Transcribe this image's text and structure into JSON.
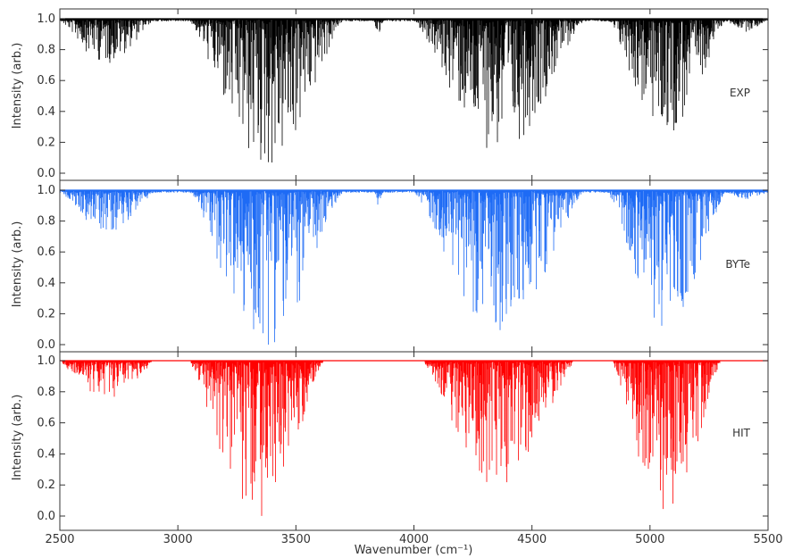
{
  "chart_data": {
    "type": "line",
    "x_range": [
      2500,
      5500
    ],
    "ylim": [
      0.0,
      1.0
    ],
    "xlabel": "Wavenumber (cm⁻¹)",
    "ylabel": "Intensity (arb.)",
    "x_ticks": [
      "2500",
      "3000",
      "3500",
      "4000",
      "4500",
      "5000",
      "5500"
    ],
    "x_tick_values": [
      2500,
      3000,
      3500,
      4000,
      4500,
      5000,
      5500
    ],
    "y_ticks": [
      "0.0",
      "0.2",
      "0.4",
      "0.6",
      "0.8",
      "1.0"
    ],
    "y_tick_values": [
      0.0,
      0.2,
      0.4,
      0.6,
      0.8,
      1.0
    ],
    "panels": [
      {
        "label": "EXP",
        "color": "#000000",
        "bands": [
          {
            "range": [
              2500,
              2900
            ],
            "min": 0.72
          },
          {
            "range": [
              3050,
              3700
            ],
            "min": 0.01
          },
          {
            "range": [
              3830,
              3870
            ],
            "min": 0.88
          },
          {
            "range": [
              4000,
              4720
            ],
            "min": 0.14
          },
          {
            "range": [
              4820,
              5320
            ],
            "min": 0.25
          },
          {
            "range": [
              5320,
              5500
            ],
            "min": 0.93
          }
        ]
      },
      {
        "label": "BYTe",
        "color": "#1e6bf5",
        "bands": [
          {
            "range": [
              2500,
              2900
            ],
            "min": 0.74
          },
          {
            "range": [
              3050,
              3700
            ],
            "min": 0.0
          },
          {
            "range": [
              3830,
              3870
            ],
            "min": 0.9
          },
          {
            "range": [
              4000,
              4720
            ],
            "min": 0.09
          },
          {
            "range": [
              4820,
              5320
            ],
            "min": 0.1
          },
          {
            "range": [
              5320,
              5500
            ],
            "min": 0.95
          }
        ]
      },
      {
        "label": "HIT",
        "color": "#ff0000",
        "bands": [
          {
            "range": [
              2500,
              2900
            ],
            "min": 0.76
          },
          {
            "range": [
              3050,
              3620
            ],
            "min": 0.0
          },
          {
            "range": [
              4040,
              4680
            ],
            "min": 0.2
          },
          {
            "range": [
              4840,
              5300
            ],
            "min": 0.0
          }
        ]
      }
    ]
  }
}
